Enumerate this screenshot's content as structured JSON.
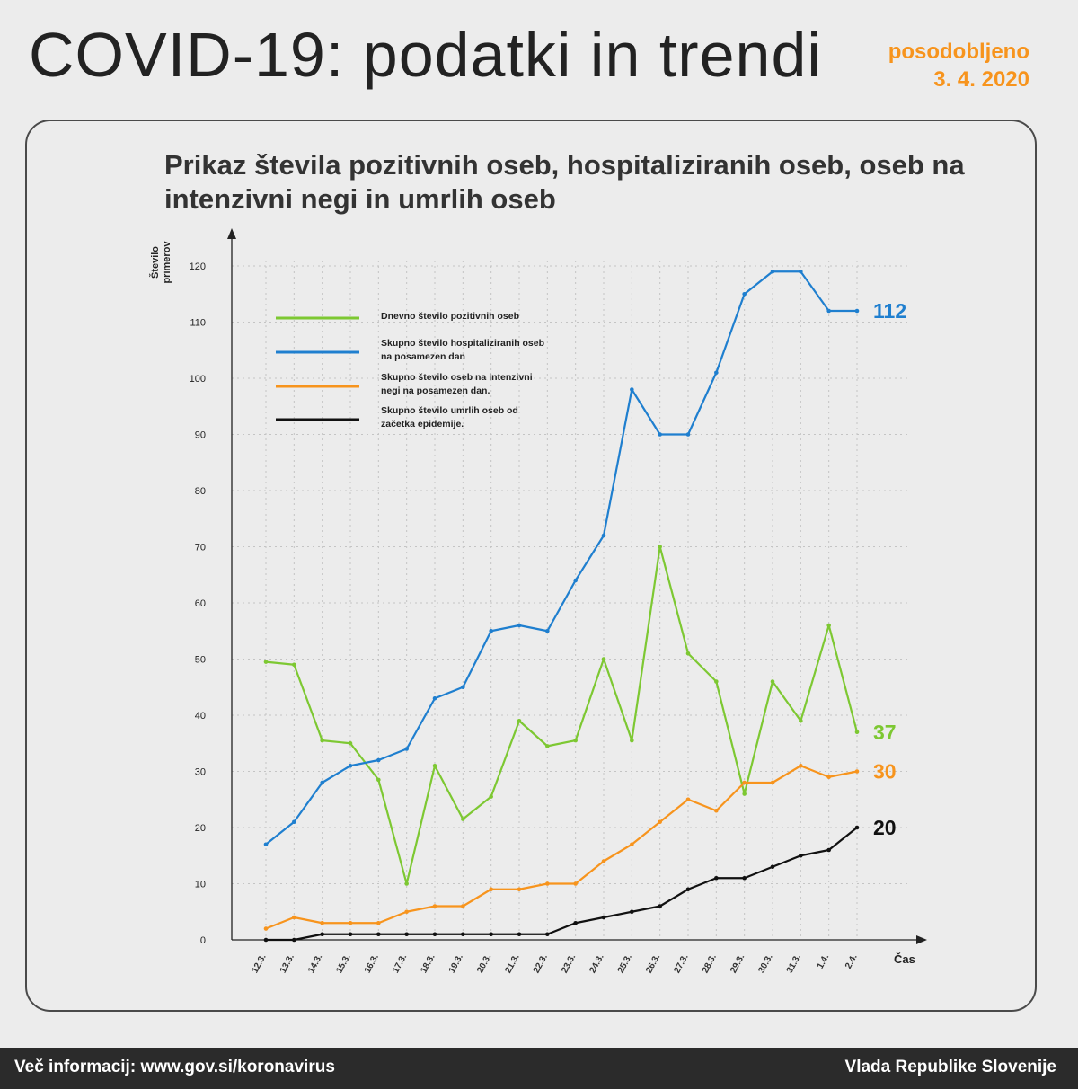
{
  "header": {
    "title": "COVID-19: podatki in trendi",
    "updated_label": "posodobljeno",
    "updated_date": "3. 4. 2020"
  },
  "footer": {
    "info": "Več informacij: www.gov.si/koronavirus",
    "org": "Vlada Republike Slovenije"
  },
  "chart_data": {
    "type": "line",
    "title": "Prikaz števila pozitivnih oseb, hospitaliziranih oseb, oseb na intenzivni negi in umrlih oseb",
    "xlabel": "Čas",
    "ylabel": "Število primerov",
    "ylim": [
      0,
      120
    ],
    "yticks": [
      0,
      10,
      20,
      30,
      40,
      50,
      60,
      70,
      80,
      90,
      100,
      110,
      120
    ],
    "grid": true,
    "legend_position": "top-left",
    "categories": [
      "12.3.",
      "13.3.",
      "14.3.",
      "15.3.",
      "16.3.",
      "17.3.",
      "18.3.",
      "19.3.",
      "20.3.",
      "21.3.",
      "22.3.",
      "23.3.",
      "24.3.",
      "25.3.",
      "26.3.",
      "27.3.",
      "28.3.",
      "29.3.",
      "30.3.",
      "31.3.",
      "1.4.",
      "2.4."
    ],
    "series": [
      {
        "name": "Dnevno število pozitivnih oseb",
        "color": "#7dc832",
        "end_label": "37",
        "values": [
          49.5,
          49,
          35.5,
          35,
          28.5,
          10,
          31,
          21.5,
          25.5,
          39,
          34.5,
          35.5,
          50,
          35.5,
          70,
          51,
          46,
          26,
          46,
          39,
          56,
          37
        ]
      },
      {
        "name": "Skupno število hospitaliziranih oseb na posamezen dan",
        "color": "#1f7fcf",
        "end_label": "112",
        "values": [
          17,
          21,
          28,
          31,
          32,
          34,
          43,
          45,
          55,
          56,
          55,
          64,
          72,
          98,
          90,
          90,
          101,
          115,
          119,
          119,
          112,
          112
        ]
      },
      {
        "name": "Skupno število oseb na intenzivni negi na posamezen dan.",
        "color": "#f7941d",
        "end_label": "30",
        "values": [
          2,
          4,
          3,
          3,
          3,
          5,
          6,
          6,
          9,
          9,
          10,
          10,
          14,
          17,
          21,
          25,
          23,
          28,
          28,
          31,
          29,
          30
        ]
      },
      {
        "name": "Skupno število umrlih oseb od začetka epidemije.",
        "color": "#111111",
        "end_label": "20",
        "values": [
          0,
          0,
          1,
          1,
          1,
          1,
          1,
          1,
          1,
          1,
          1,
          3,
          4,
          5,
          6,
          9,
          11,
          11,
          13,
          15,
          16,
          20
        ]
      }
    ]
  }
}
